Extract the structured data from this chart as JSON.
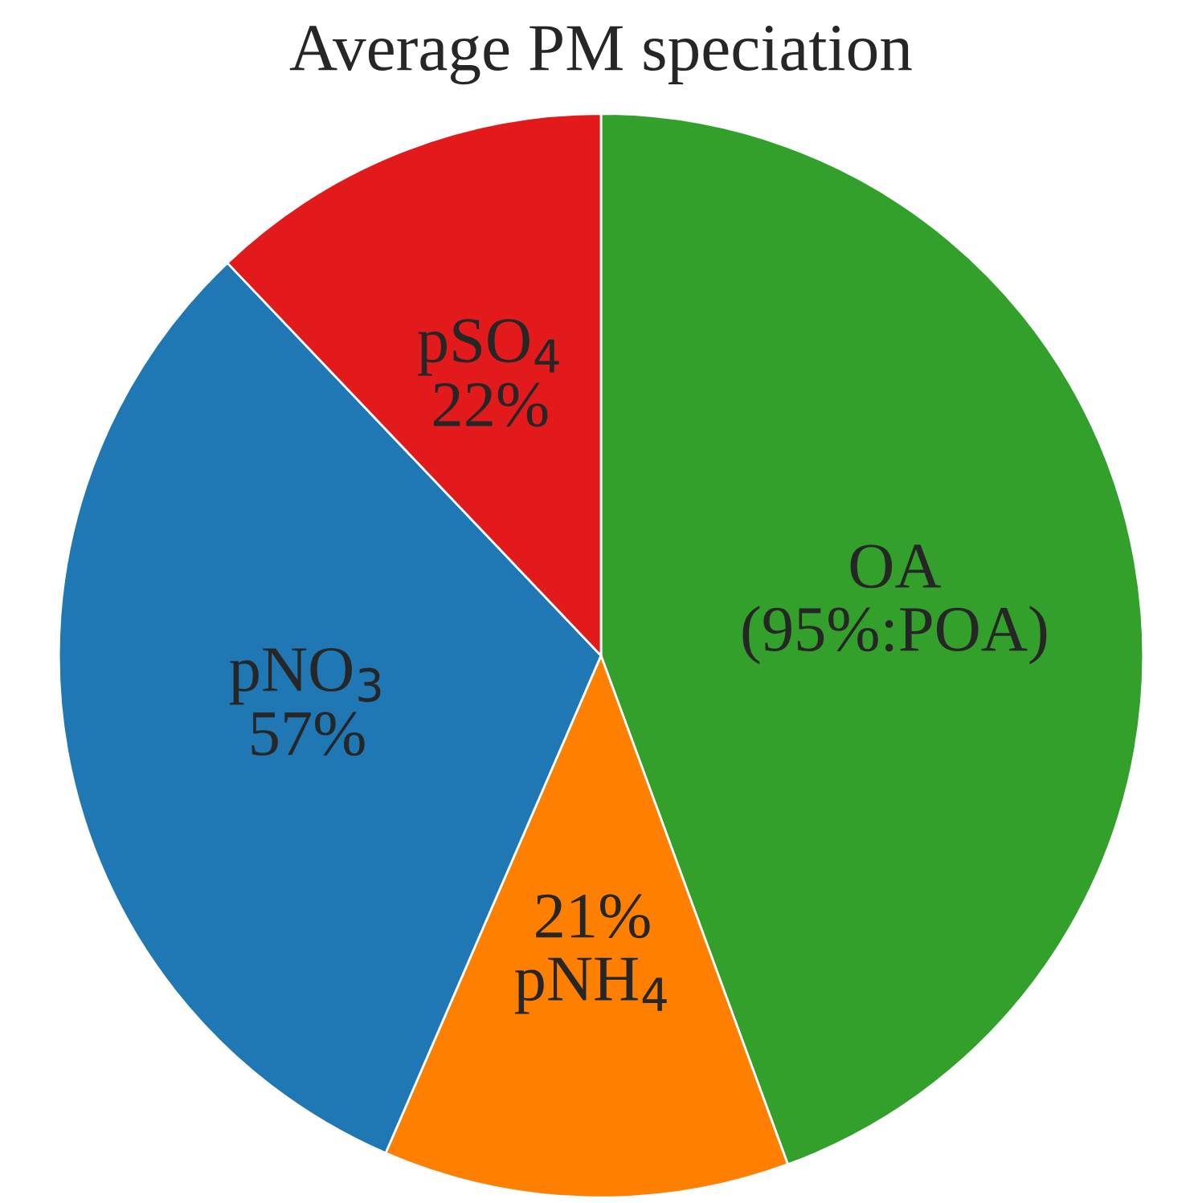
{
  "chart_data": {
    "type": "pie",
    "title": "Average PM speciation",
    "categories": [
      "OA\n(95%:POA)",
      "21%\npNH$_{4}$",
      "pNO$_{3}$\n57%",
      "pSO$_{4}$\n22%"
    ],
    "values": [
      44.4,
      12.1,
      31.4,
      12.1
    ],
    "colors": [
      "#33a02c",
      "#ff7f00",
      "#1f78b4",
      "#e31a1c"
    ]
  }
}
